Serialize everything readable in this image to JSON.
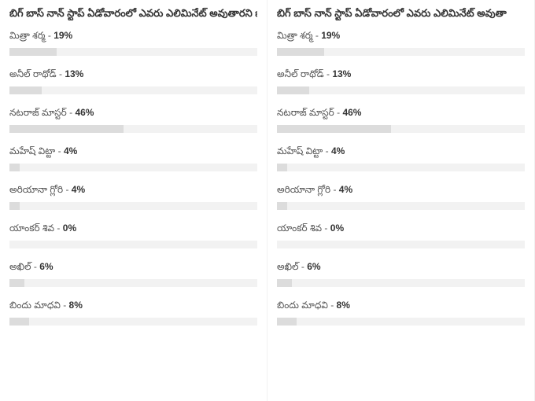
{
  "poll": {
    "title_full": "బిగ్ బాస్ నాన్ స్టాప్ ఏడోవారంలో ఎవరు ఎలిమినేట్ అవుతారని భావిస్తు",
    "title_cut": "బిగ్ బాస్ నాన్ స్టాప్ ఏడోవారంలో ఎవరు ఎలిమినేట్ అవుతా",
    "items": [
      {
        "name": "మిత్రా శర్మ",
        "percent": 19
      },
      {
        "name": "అనీల్ రాథోడ్",
        "percent": 13
      },
      {
        "name": "నటరాజ్ మాస్టర్",
        "percent": 46
      },
      {
        "name": "మహేష్ విట్టా",
        "percent": 4
      },
      {
        "name": "అరియానా గ్లోరి",
        "percent": 4
      },
      {
        "name": "యాంకర్ శివ",
        "percent": 0
      },
      {
        "name": "అఖిల్",
        "percent": 6
      },
      {
        "name": "బిందు మాధవి",
        "percent": 8
      }
    ],
    "track_color": "#f2f2f2",
    "fill_color": "#dcdcdc",
    "text_color": "#555555",
    "title_color": "#333333"
  }
}
